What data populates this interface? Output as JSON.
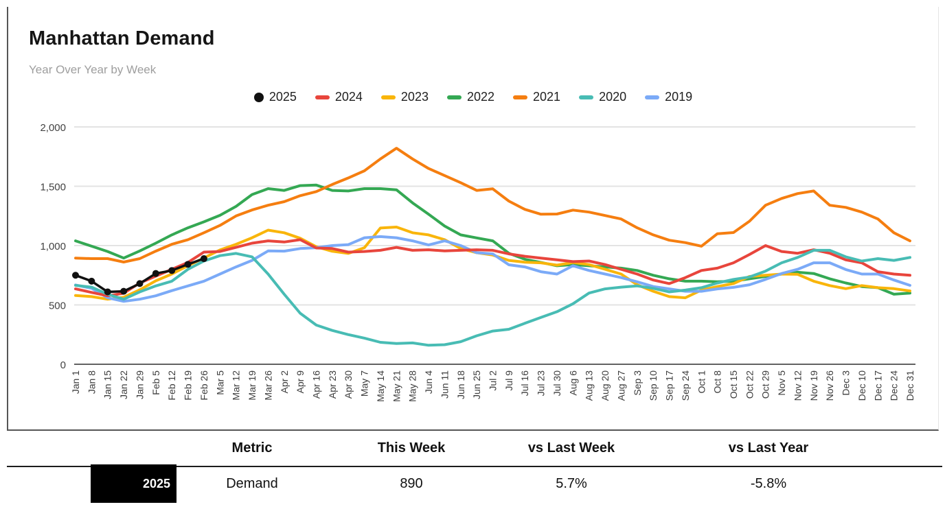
{
  "header": {
    "title": "Manhattan Demand",
    "subtitle": "Year Over Year by Week"
  },
  "chart_data": {
    "type": "line",
    "title": "Manhattan Demand",
    "subtitle": "Year Over Year by Week",
    "xlabel": "",
    "ylabel": "",
    "ylim": [
      0,
      2000
    ],
    "yticks": [
      0,
      500,
      1000,
      1500,
      2000
    ],
    "ytick_labels": [
      "0",
      "500",
      "1,000",
      "1,500",
      "2,000"
    ],
    "grid": true,
    "legend_position": "top-center",
    "x_label_rotation": -90,
    "categories": [
      "Jan 1",
      "Jan 8",
      "Jan 15",
      "Jan 22",
      "Jan 29",
      "Feb 5",
      "Feb 12",
      "Feb 19",
      "Feb 26",
      "Mar 5",
      "Mar 12",
      "Mar 19",
      "Mar 26",
      "Apr 2",
      "Apr 9",
      "Apr 16",
      "Apr 23",
      "Apr 30",
      "May 7",
      "May 14",
      "May 21",
      "May 28",
      "Jun 4",
      "Jun 11",
      "Jun 18",
      "Jun 25",
      "Jul 2",
      "Jul 9",
      "Jul 16",
      "Jul 23",
      "Jul 30",
      "Aug 6",
      "Aug 13",
      "Aug 20",
      "Aug 27",
      "Sep 3",
      "Sep 10",
      "Sep 17",
      "Sep 24",
      "Oct 1",
      "Oct 8",
      "Oct 15",
      "Oct 22",
      "Oct 29",
      "Nov 5",
      "Nov 12",
      "Nov 19",
      "Nov 26",
      "Dec 3",
      "Dec 10",
      "Dec 17",
      "Dec 24",
      "Dec 31"
    ],
    "series": [
      {
        "name": "2025",
        "color": "#111111",
        "marker": "circle",
        "line_width": 3.5,
        "values": [
          750,
          700,
          610,
          615,
          680,
          765,
          790,
          842,
          890,
          null,
          null,
          null,
          null,
          null,
          null,
          null,
          null,
          null,
          null,
          null,
          null,
          null,
          null,
          null,
          null,
          null,
          null,
          null,
          null,
          null,
          null,
          null,
          null,
          null,
          null,
          null,
          null,
          null,
          null,
          null,
          null,
          null,
          null,
          null,
          null,
          null,
          null,
          null,
          null,
          null,
          null,
          null,
          null
        ]
      },
      {
        "name": "2024",
        "color": "#e8453c",
        "marker": "none",
        "line_width": 4,
        "values": [
          635,
          605,
          577,
          598,
          685,
          743,
          800,
          858,
          945,
          950,
          985,
          1020,
          1040,
          1030,
          1050,
          980,
          975,
          945,
          950,
          960,
          985,
          960,
          965,
          955,
          960,
          965,
          960,
          930,
          910,
          895,
          880,
          865,
          870,
          840,
          800,
          760,
          710,
          680,
          730,
          790,
          810,
          855,
          925,
          1000,
          950,
          935,
          965,
          935,
          880,
          855,
          780,
          760,
          750
        ]
      },
      {
        "name": "2023",
        "color": "#f9b50b",
        "marker": "none",
        "line_width": 4,
        "values": [
          580,
          570,
          548,
          565,
          627,
          703,
          760,
          830,
          896,
          963,
          1011,
          1066,
          1130,
          1108,
          1062,
          990,
          952,
          934,
          982,
          1148,
          1156,
          1108,
          1090,
          1050,
          975,
          940,
          920,
          875,
          860,
          855,
          835,
          858,
          840,
          800,
          760,
          670,
          615,
          570,
          560,
          625,
          655,
          680,
          740,
          750,
          760,
          758,
          700,
          663,
          637,
          663,
          645,
          637,
          618
        ]
      },
      {
        "name": "2022",
        "color": "#34a853",
        "marker": "none",
        "line_width": 4,
        "values": [
          1040,
          995,
          950,
          895,
          955,
          1020,
          1090,
          1150,
          1200,
          1255,
          1330,
          1430,
          1480,
          1465,
          1505,
          1510,
          1465,
          1460,
          1480,
          1480,
          1470,
          1360,
          1265,
          1165,
          1090,
          1065,
          1040,
          935,
          885,
          858,
          830,
          840,
          830,
          820,
          810,
          790,
          750,
          720,
          700,
          700,
          695,
          700,
          720,
          740,
          760,
          775,
          765,
          720,
          685,
          655,
          645,
          590,
          600
        ]
      },
      {
        "name": "2021",
        "color": "#f57e10",
        "marker": "none",
        "line_width": 4,
        "values": [
          895,
          890,
          890,
          861,
          890,
          953,
          1011,
          1050,
          1108,
          1170,
          1250,
          1300,
          1340,
          1370,
          1420,
          1455,
          1515,
          1570,
          1630,
          1730,
          1820,
          1730,
          1650,
          1590,
          1530,
          1465,
          1478,
          1375,
          1305,
          1264,
          1266,
          1299,
          1282,
          1253,
          1224,
          1150,
          1090,
          1045,
          1025,
          995,
          1100,
          1110,
          1205,
          1340,
          1397,
          1438,
          1460,
          1340,
          1322,
          1282,
          1224,
          1108,
          1040
        ]
      },
      {
        "name": "2020",
        "color": "#48bcb4",
        "marker": "none",
        "line_width": 4,
        "values": [
          665,
          650,
          590,
          548,
          610,
          660,
          700,
          800,
          870,
          915,
          934,
          905,
          760,
          590,
          430,
          330,
          285,
          250,
          220,
          185,
          175,
          180,
          160,
          165,
          190,
          240,
          280,
          295,
          345,
          395,
          443,
          510,
          600,
          635,
          650,
          660,
          640,
          610,
          625,
          645,
          685,
          715,
          735,
          785,
          855,
          900,
          960,
          960,
          905,
          870,
          890,
          875,
          900
        ]
      },
      {
        "name": "2019",
        "color": "#7baaf7",
        "marker": "none",
        "line_width": 4,
        "values": [
          668,
          640,
          560,
          530,
          548,
          577,
          620,
          660,
          700,
          760,
          820,
          875,
          955,
          953,
          975,
          982,
          1000,
          1008,
          1066,
          1076,
          1066,
          1040,
          1005,
          1040,
          1000,
          940,
          930,
          838,
          820,
          780,
          760,
          830,
          790,
          760,
          730,
          695,
          655,
          635,
          615,
          615,
          635,
          648,
          670,
          715,
          765,
          800,
          855,
          855,
          798,
          760,
          760,
          710,
          665
        ]
      }
    ],
    "draw_order": [
      "2022",
      "2023",
      "2019",
      "2024",
      "2020",
      "2021",
      "2025"
    ],
    "legend_order": [
      "2025",
      "2024",
      "2023",
      "2022",
      "2021",
      "2020",
      "2019"
    ]
  },
  "summary_table": {
    "badge_label": "2025",
    "badge_bg": "#000000",
    "badge_text_color": "#ffffff",
    "columns": [
      "Metric",
      "This Week",
      "vs Last Week",
      "vs Last Year"
    ],
    "row": {
      "metric": "Demand",
      "this_week": "890",
      "vs_last_week": "5.7%",
      "vs_last_year": "-5.8%"
    }
  }
}
